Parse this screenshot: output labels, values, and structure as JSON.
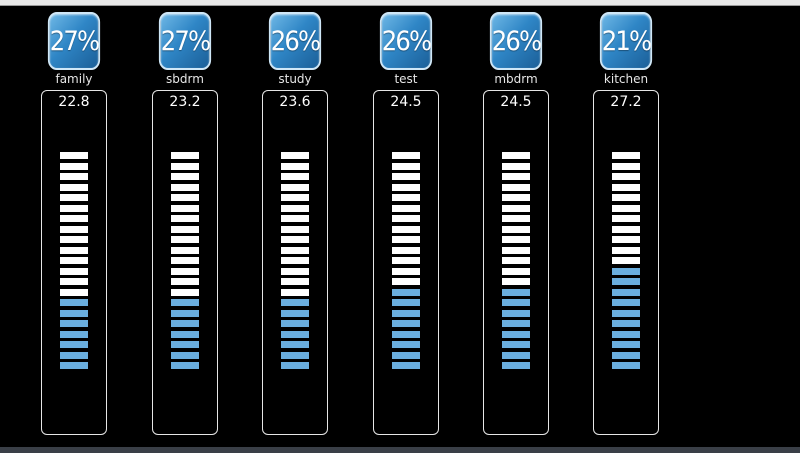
{
  "colors": {
    "background": "#000000",
    "badge": "#2f86c6",
    "segment_empty": "#ffffff",
    "segment_filled": "#6aaede"
  },
  "segment_total": 21,
  "sensors": [
    {
      "id": "family",
      "label": "family",
      "humidity": "27%",
      "temperature": "22.8",
      "filled_segments": 7
    },
    {
      "id": "sbdrm",
      "label": "sbdrm",
      "humidity": "27%",
      "temperature": "23.2",
      "filled_segments": 7
    },
    {
      "id": "study",
      "label": "study",
      "humidity": "26%",
      "temperature": "23.6",
      "filled_segments": 7
    },
    {
      "id": "test",
      "label": "test",
      "humidity": "26%",
      "temperature": "24.5",
      "filled_segments": 8
    },
    {
      "id": "mbdrm",
      "label": "mbdrm",
      "humidity": "26%",
      "temperature": "24.5",
      "filled_segments": 8
    },
    {
      "id": "kitchen",
      "label": "kitchen",
      "humidity": "21%",
      "temperature": "27.2",
      "filled_segments": 10
    }
  ]
}
